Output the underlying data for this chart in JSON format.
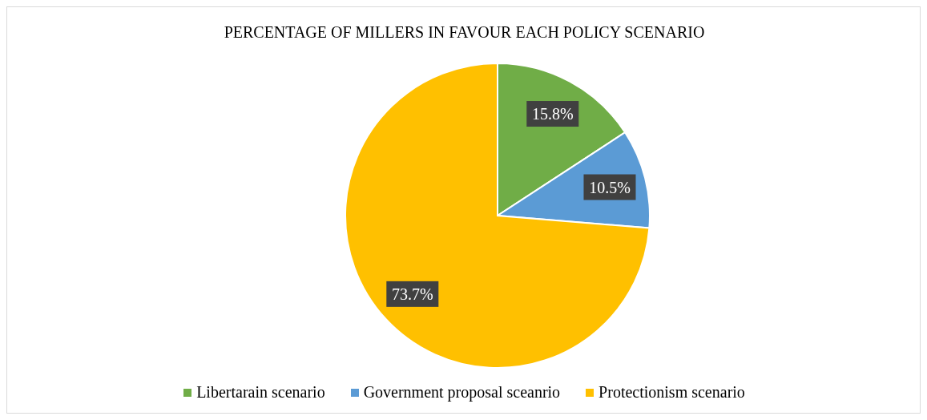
{
  "chart_data": {
    "type": "pie",
    "title": "PERCENTAGE OF MILLERS IN FAVOUR EACH POLICY SCENARIO",
    "categories": [
      "Libertarain scenario",
      "Government proposal sceanrio",
      "Protectionism scenario"
    ],
    "values": [
      15.8,
      10.5,
      73.7
    ],
    "colors": [
      "#70ad47",
      "#5b9bd5",
      "#ffc000"
    ],
    "value_labels": [
      "15.8%",
      "10.5%",
      "73.7%"
    ],
    "legend": "bottom"
  }
}
